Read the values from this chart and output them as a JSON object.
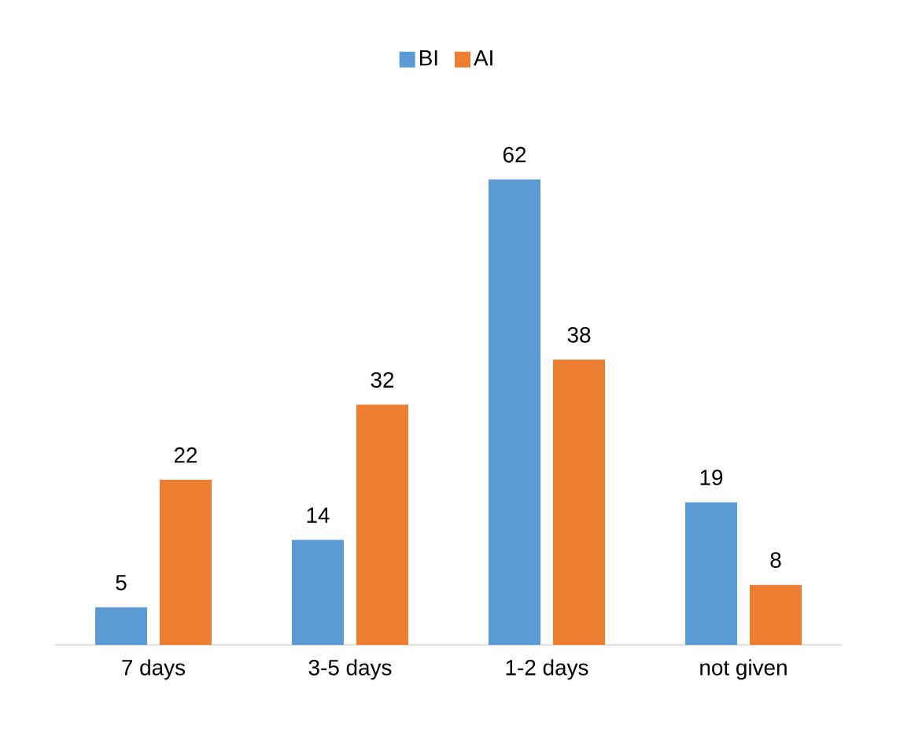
{
  "chart_data": {
    "type": "bar",
    "categories": [
      "7 days",
      "3-5 days",
      "1-2 days",
      "not given"
    ],
    "series": [
      {
        "name": "BI",
        "color": "#5b9bd5",
        "values": [
          5,
          14,
          62,
          19
        ]
      },
      {
        "name": "AI",
        "color": "#ed7d31",
        "values": [
          22,
          32,
          38,
          8
        ]
      }
    ],
    "data_labels": true,
    "legend": "top"
  }
}
